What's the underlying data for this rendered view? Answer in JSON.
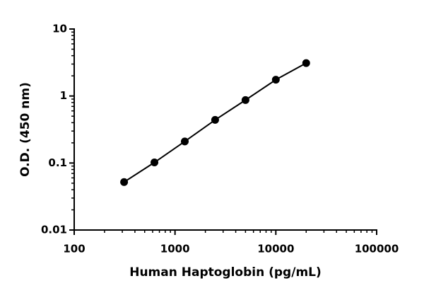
{
  "chart_data": {
    "type": "line",
    "x_label": "Human Haptoglobin (pg/mL)",
    "y_label": "O.D. (450 nm)",
    "x": [
      312.5,
      625,
      1250,
      2500,
      5000,
      10000,
      20000
    ],
    "values": [
      0.052,
      0.102,
      0.21,
      0.44,
      0.87,
      1.75,
      3.1
    ],
    "color": "#000000",
    "xscale": "log",
    "yscale": "log",
    "xlim": [
      100,
      100000
    ],
    "ylim": [
      0.01,
      10
    ],
    "xticks": [
      100,
      1000,
      10000,
      100000
    ],
    "yticks": [
      0.01,
      0.1,
      1,
      10
    ]
  }
}
